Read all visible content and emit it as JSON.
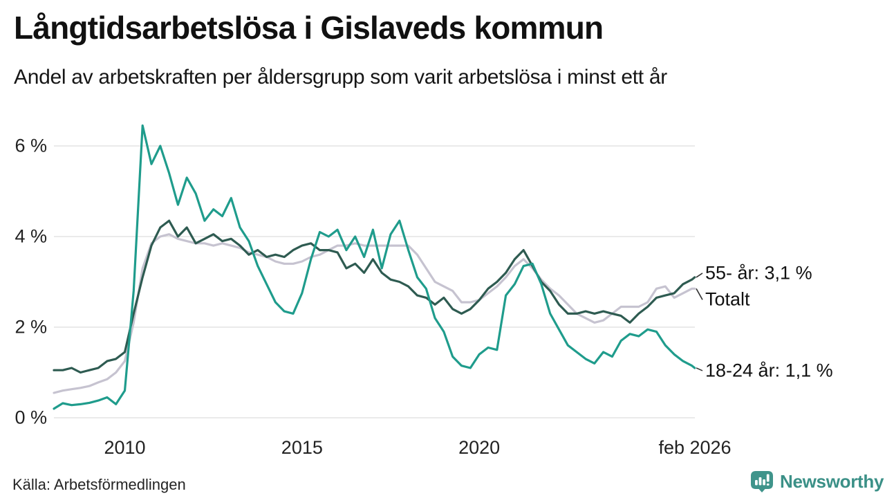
{
  "chart_data": {
    "type": "line",
    "title": "Långtidsarbetslösa i Gislaveds kommun",
    "subtitle": "Andel av arbetskraften per åldersgrupp som varit arbetslösa i minst ett år",
    "x_unit": "decimal_year_monthly_series",
    "xlim": [
      2008.0,
      2026.083
    ],
    "ylim": [
      0,
      6.6
    ],
    "grid": "horizontal",
    "legend": "end-of-line-labels",
    "x": [
      2008,
      2008.25,
      2008.5,
      2008.75,
      2009,
      2009.25,
      2009.5,
      2009.75,
      2010,
      2010.25,
      2010.5,
      2010.75,
      2011,
      2011.25,
      2011.5,
      2011.75,
      2012,
      2012.25,
      2012.5,
      2012.75,
      2013,
      2013.25,
      2013.5,
      2013.75,
      2014,
      2014.25,
      2014.5,
      2014.75,
      2015,
      2015.25,
      2015.5,
      2015.75,
      2016,
      2016.25,
      2016.5,
      2016.75,
      2017,
      2017.25,
      2017.5,
      2017.75,
      2018,
      2018.25,
      2018.5,
      2018.75,
      2019,
      2019.25,
      2019.5,
      2019.75,
      2020,
      2020.25,
      2020.5,
      2020.75,
      2021,
      2021.25,
      2021.5,
      2021.75,
      2022,
      2022.25,
      2022.5,
      2022.75,
      2023,
      2023.25,
      2023.5,
      2023.75,
      2024,
      2024.25,
      2024.5,
      2024.75,
      2025,
      2025.25,
      2025.5,
      2025.75,
      2026,
      2026.08
    ],
    "series": [
      {
        "name": "18-24 år",
        "end_label": "18-24 år: 1,1 %",
        "end_value_pct": 1.1,
        "color": "#1f9c8c",
        "values": [
          0.2,
          0.32,
          0.28,
          0.3,
          0.33,
          0.38,
          0.45,
          0.3,
          0.6,
          2.8,
          6.45,
          5.6,
          6.0,
          5.4,
          4.7,
          5.3,
          4.95,
          4.35,
          4.6,
          4.45,
          4.85,
          4.2,
          3.9,
          3.35,
          2.95,
          2.55,
          2.35,
          2.3,
          2.75,
          3.5,
          4.1,
          4.0,
          4.15,
          3.7,
          4.0,
          3.55,
          4.15,
          3.3,
          4.05,
          4.35,
          3.7,
          3.1,
          2.85,
          2.2,
          1.9,
          1.35,
          1.15,
          1.1,
          1.4,
          1.55,
          1.5,
          2.7,
          2.95,
          3.35,
          3.4,
          2.95,
          2.3,
          1.95,
          1.6,
          1.45,
          1.3,
          1.2,
          1.45,
          1.35,
          1.7,
          1.85,
          1.8,
          1.95,
          1.9,
          1.6,
          1.4,
          1.25,
          1.15,
          1.1
        ]
      },
      {
        "name": "Totalt",
        "end_label": "Totalt",
        "end_value_pct": 2.85,
        "color": "#c6c3d0",
        "values": [
          0.55,
          0.6,
          0.63,
          0.66,
          0.7,
          0.78,
          0.85,
          1.0,
          1.25,
          2.1,
          3.3,
          3.85,
          4.0,
          4.05,
          3.95,
          3.9,
          3.85,
          3.85,
          3.8,
          3.85,
          3.8,
          3.75,
          3.65,
          3.6,
          3.55,
          3.45,
          3.4,
          3.4,
          3.45,
          3.55,
          3.6,
          3.7,
          3.8,
          3.8,
          3.85,
          3.8,
          3.8,
          3.8,
          3.8,
          3.8,
          3.8,
          3.6,
          3.3,
          3.0,
          2.9,
          2.8,
          2.55,
          2.55,
          2.6,
          2.75,
          2.9,
          3.1,
          3.35,
          3.5,
          3.3,
          3.05,
          2.85,
          2.7,
          2.5,
          2.3,
          2.2,
          2.1,
          2.15,
          2.3,
          2.45,
          2.45,
          2.45,
          2.55,
          2.85,
          2.9,
          2.65,
          2.75,
          2.85,
          2.85
        ]
      },
      {
        "name": "55- år",
        "end_label": "55- år: 3,1 %",
        "end_value_pct": 3.1,
        "color": "#2e5b51",
        "values": [
          1.05,
          1.05,
          1.1,
          1.0,
          1.05,
          1.1,
          1.25,
          1.3,
          1.45,
          2.3,
          3.1,
          3.8,
          4.2,
          4.35,
          4.0,
          4.2,
          3.85,
          3.95,
          4.05,
          3.9,
          3.95,
          3.8,
          3.6,
          3.7,
          3.55,
          3.6,
          3.55,
          3.7,
          3.8,
          3.85,
          3.7,
          3.7,
          3.65,
          3.3,
          3.4,
          3.2,
          3.5,
          3.2,
          3.05,
          3.0,
          2.9,
          2.7,
          2.65,
          2.5,
          2.65,
          2.4,
          2.3,
          2.4,
          2.6,
          2.85,
          3.0,
          3.2,
          3.5,
          3.7,
          3.35,
          3.0,
          2.8,
          2.5,
          2.3,
          2.3,
          2.35,
          2.3,
          2.35,
          2.3,
          2.25,
          2.1,
          2.3,
          2.45,
          2.65,
          2.7,
          2.75,
          2.95,
          3.05,
          3.1
        ]
      }
    ],
    "yticks": [
      {
        "value": 0,
        "label": "0 %"
      },
      {
        "value": 2,
        "label": "2 %"
      },
      {
        "value": 4,
        "label": "4 %"
      },
      {
        "value": 6,
        "label": "6 %"
      }
    ],
    "xticks": [
      {
        "value": 2010,
        "label": "2010"
      },
      {
        "value": 2015,
        "label": "2015"
      },
      {
        "value": 2020,
        "label": "2020"
      },
      {
        "value": 2026.083,
        "label": "feb 2026"
      }
    ]
  },
  "source": {
    "label": "Källa: Arbetsförmedlingen"
  },
  "logo": {
    "wordmark": "Newsworthy",
    "brand_color": "#3b9087",
    "icon": "speech-bubble-bar-chart-exclamation"
  }
}
